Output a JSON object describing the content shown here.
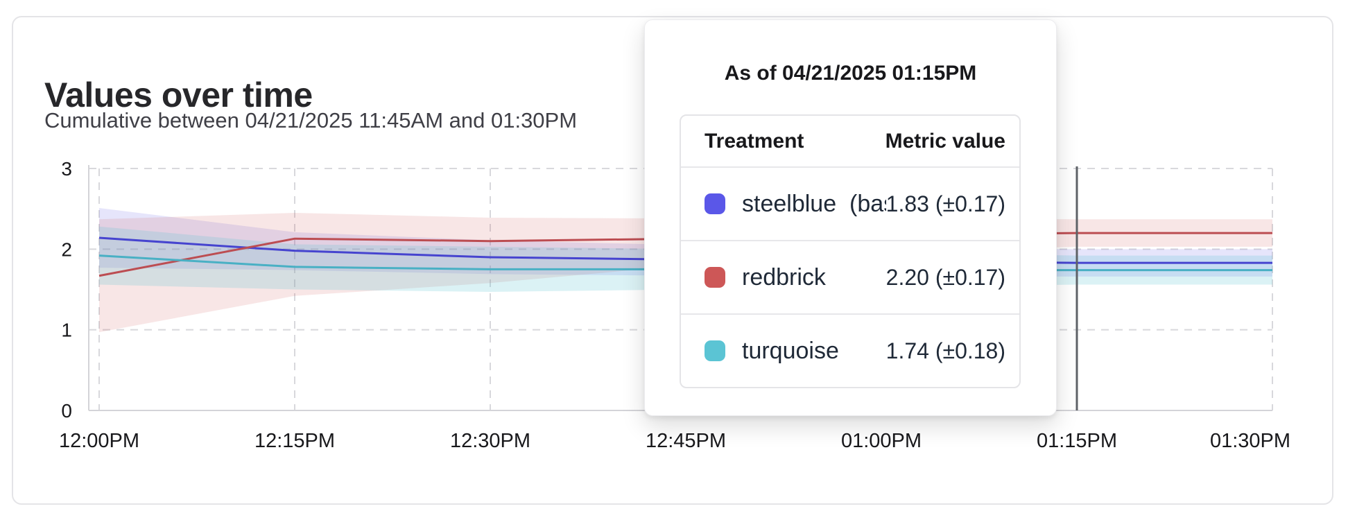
{
  "card": {
    "title": "Values over time",
    "subtitle": "Cumulative between 04/21/2025 11:45AM and 01:30PM"
  },
  "tooltip": {
    "title": "As of 04/21/2025 01:15PM",
    "columns": {
      "treatment": "Treatment",
      "metric": "Metric value"
    },
    "rows": [
      {
        "treatment": "steelblue  (baseli",
        "value": "1.83 (±0.17)",
        "color": "#5a57e8"
      },
      {
        "treatment": "redbrick",
        "value": "2.20 (±0.17)",
        "color": "#cd5757"
      },
      {
        "treatment": "turquoise",
        "value": "1.74 (±0.18)",
        "color": "#5bc4d4"
      }
    ]
  },
  "chart_data": {
    "type": "line",
    "title": "Values over time",
    "subtitle": "Cumulative between 04/21/2025 11:45AM and 01:30PM",
    "categories": [
      "12:00PM",
      "12:15PM",
      "12:30PM",
      "12:45PM",
      "01:00PM",
      "01:15PM",
      "01:30PM"
    ],
    "yticks": [
      0,
      1,
      2,
      3
    ],
    "ylim": [
      0,
      3
    ],
    "grid": true,
    "legend_position": "tooltip-overlay",
    "hover_time": "01:15PM",
    "series": [
      {
        "name": "steelblue  (baseli",
        "line_color": "#4644cf",
        "band_color": "rgba(100,95,230,0.16)",
        "values": [
          2.14,
          1.98,
          1.9,
          1.87,
          1.85,
          1.83,
          1.83
        ],
        "lower": [
          1.77,
          1.74,
          1.69,
          1.67,
          1.66,
          1.66,
          1.66
        ],
        "upper": [
          2.51,
          2.21,
          2.11,
          2.05,
          2.02,
          2.0,
          2.0
        ]
      },
      {
        "name": "redbrick",
        "line_color": "#bc4d52",
        "band_color": "rgba(205,85,90,0.15)",
        "values": [
          1.67,
          2.13,
          2.1,
          2.13,
          2.17,
          2.2,
          2.2
        ],
        "lower": [
          0.97,
          1.42,
          1.58,
          1.8,
          1.95,
          2.03,
          2.03
        ],
        "upper": [
          2.37,
          2.45,
          2.39,
          2.38,
          2.38,
          2.37,
          2.37
        ]
      },
      {
        "name": "turquoise",
        "line_color": "#49b0c4",
        "band_color": "rgba(90,195,210,0.22)",
        "values": [
          1.92,
          1.78,
          1.75,
          1.75,
          1.74,
          1.74,
          1.74
        ],
        "lower": [
          1.56,
          1.5,
          1.47,
          1.5,
          1.53,
          1.56,
          1.56
        ],
        "upper": [
          2.28,
          2.06,
          2.03,
          2.0,
          1.96,
          1.92,
          1.92
        ]
      }
    ]
  },
  "colors": {
    "hover_line": "#5f6368",
    "grid_line": "#d8d8dc",
    "axis_line": "#d4d4d8",
    "tick_text": "#18181b"
  }
}
